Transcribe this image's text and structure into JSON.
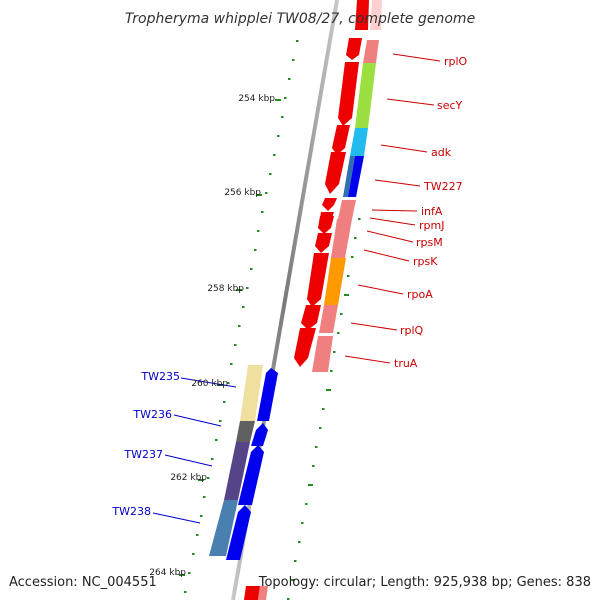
{
  "title": "Tropheryma whipplei TW08/27, complete genome",
  "accession_text": "Accession: NC_004551",
  "topology_text": "Topology: circular; Length: 925,938 bp; Genes: 838",
  "colors": {
    "right_label": "#cc0000",
    "left_label": "#0000cc",
    "tick": "#228b22",
    "backbone": "#8c8c8c",
    "forward_arrow": "#0000ee",
    "reverse_arrow": "#ee0000"
  },
  "scale_ticks": [
    {
      "label": "254 kbp"
    },
    {
      "label": "256 kbp"
    },
    {
      "label": "258 kbp"
    },
    {
      "label": "260 kbp"
    },
    {
      "label": "262 kbp"
    },
    {
      "label": "264 kbp"
    }
  ],
  "right_genes": [
    {
      "label": "rplO",
      "color": "#f08080"
    },
    {
      "label": "secY",
      "color": "#9be040"
    },
    {
      "label": "adk",
      "color": "#22bbee"
    },
    {
      "label": "TW227",
      "color": "#3070b0"
    },
    {
      "label": "infA",
      "color": "#f08080"
    },
    {
      "label": "rpmJ",
      "color": "#f08080"
    },
    {
      "label": "rpsM",
      "color": "#f08080"
    },
    {
      "label": "rpsK",
      "color": "#f08080"
    },
    {
      "label": "rpoA",
      "color": "#ff9900"
    },
    {
      "label": "rplQ",
      "color": "#f08080"
    },
    {
      "label": "truA",
      "color": "#f08080"
    }
  ],
  "left_genes": [
    {
      "label": "TW235",
      "color": "#f0e0a0"
    },
    {
      "label": "TW236",
      "color": "#606060"
    },
    {
      "label": "TW237",
      "color": "#554488"
    },
    {
      "label": "TW238",
      "color": "#4a80b0"
    }
  ]
}
